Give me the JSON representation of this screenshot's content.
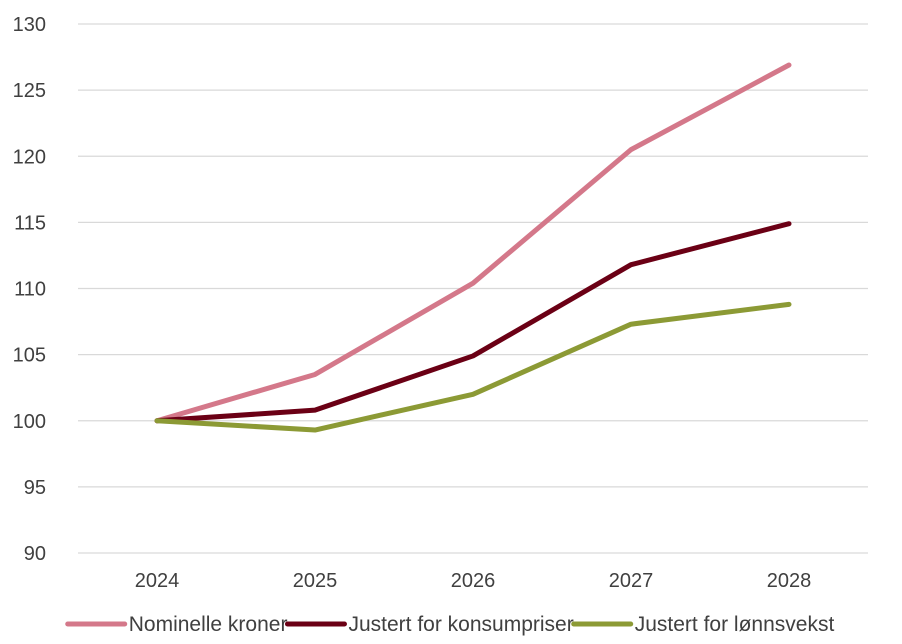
{
  "chart_data": {
    "type": "line",
    "title": "",
    "xlabel": "",
    "ylabel": "",
    "categories": [
      "2024",
      "2025",
      "2026",
      "2027",
      "2028"
    ],
    "ylim": [
      90,
      130
    ],
    "yticks": [
      90,
      95,
      100,
      105,
      110,
      115,
      120,
      125,
      130
    ],
    "grid": true,
    "legend_position": "bottom",
    "series": [
      {
        "name": "Nominelle kroner",
        "color": "#d4788a",
        "values": [
          100,
          103.5,
          110.4,
          120.5,
          126.9
        ]
      },
      {
        "name": "Justert for konsumpriser",
        "color": "#6b0015",
        "values": [
          100,
          100.8,
          104.9,
          111.8,
          114.9
        ]
      },
      {
        "name": "Justert for lønnsvekst",
        "color": "#8c9a35",
        "values": [
          100,
          99.3,
          102.0,
          107.3,
          108.8
        ]
      }
    ]
  }
}
